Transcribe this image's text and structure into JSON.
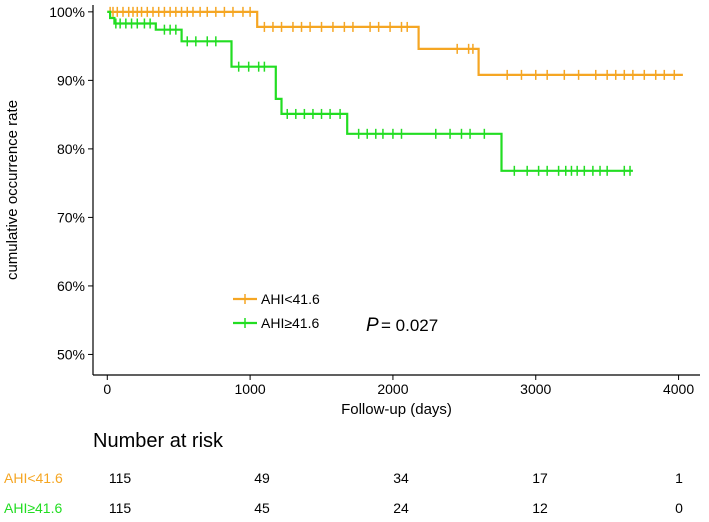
{
  "chart_data": {
    "type": "line",
    "subtype": "kaplan-meier step",
    "title": "",
    "xlabel": "Follow-up (days)",
    "ylabel": "cumulative occurrence rate",
    "xlim": [
      -100,
      4150
    ],
    "ylim": [
      0.47,
      1.01
    ],
    "xticks": [
      0,
      1000,
      2000,
      3000,
      4000
    ],
    "xtick_labels": [
      "0",
      "1000",
      "2000",
      "3000",
      "4000"
    ],
    "yticks": [
      0.5,
      0.6,
      0.7,
      0.8,
      0.9,
      1.0
    ],
    "ytick_labels": [
      "50%",
      "60%",
      "70%",
      "80%",
      "90%",
      "100%"
    ],
    "grid": false,
    "legend_position": "lower-left",
    "annotation": {
      "p_label": "P",
      "p_value": "= 0.027"
    },
    "series": [
      {
        "name": "AHI<41.6",
        "color": "#f5a623",
        "steps": [
          [
            0,
            1.0
          ],
          [
            1050,
            1.0
          ],
          [
            1050,
            0.978
          ],
          [
            2180,
            0.978
          ],
          [
            2180,
            0.946
          ],
          [
            2600,
            0.946
          ],
          [
            2600,
            0.908
          ],
          [
            4030,
            0.908
          ]
        ],
        "censor_x": [
          20,
          40,
          70,
          110,
          150,
          180,
          210,
          240,
          280,
          320,
          360,
          400,
          440,
          480,
          520,
          560,
          600,
          650,
          700,
          760,
          820,
          880,
          950,
          1000,
          1100,
          1160,
          1220,
          1300,
          1360,
          1420,
          1500,
          1580,
          1660,
          1720,
          1840,
          1900,
          1980,
          2060,
          2100,
          2450,
          2530,
          2560,
          2800,
          2900,
          3000,
          3080,
          3200,
          3300,
          3420,
          3500,
          3560,
          3620,
          3680,
          3760,
          3840,
          3900,
          3970
        ]
      },
      {
        "name": "AHI≥41.6",
        "color": "#22dd22",
        "steps": [
          [
            0,
            1.0
          ],
          [
            20,
            1.0
          ],
          [
            20,
            0.991
          ],
          [
            50,
            0.991
          ],
          [
            50,
            0.983
          ],
          [
            340,
            0.983
          ],
          [
            340,
            0.974
          ],
          [
            520,
            0.974
          ],
          [
            520,
            0.957
          ],
          [
            870,
            0.957
          ],
          [
            870,
            0.92
          ],
          [
            1180,
            0.92
          ],
          [
            1180,
            0.873
          ],
          [
            1220,
            0.873
          ],
          [
            1220,
            0.851
          ],
          [
            1680,
            0.851
          ],
          [
            1680,
            0.822
          ],
          [
            2760,
            0.822
          ],
          [
            2760,
            0.768
          ],
          [
            3680,
            0.768
          ]
        ],
        "censor_x": [
          60,
          90,
          130,
          170,
          210,
          260,
          300,
          400,
          440,
          480,
          560,
          620,
          700,
          760,
          920,
          990,
          1060,
          1100,
          1260,
          1320,
          1380,
          1440,
          1500,
          1560,
          1630,
          1760,
          1820,
          1880,
          1930,
          2000,
          2060,
          2300,
          2400,
          2480,
          2540,
          2640,
          2850,
          2940,
          3020,
          3080,
          3160,
          3210,
          3250,
          3290,
          3340,
          3400,
          3450,
          3500,
          3620,
          3660
        ]
      }
    ]
  },
  "risk_table": {
    "title": "Number at risk",
    "rows": [
      {
        "label": "AHI<41.6",
        "color": "#f5a623",
        "values": [
          "115",
          "49",
          "34",
          "17",
          "1"
        ]
      },
      {
        "label": "AHI≥41.6",
        "color": "#22dd22",
        "values": [
          "115",
          "45",
          "24",
          "12",
          "0"
        ]
      }
    ]
  }
}
